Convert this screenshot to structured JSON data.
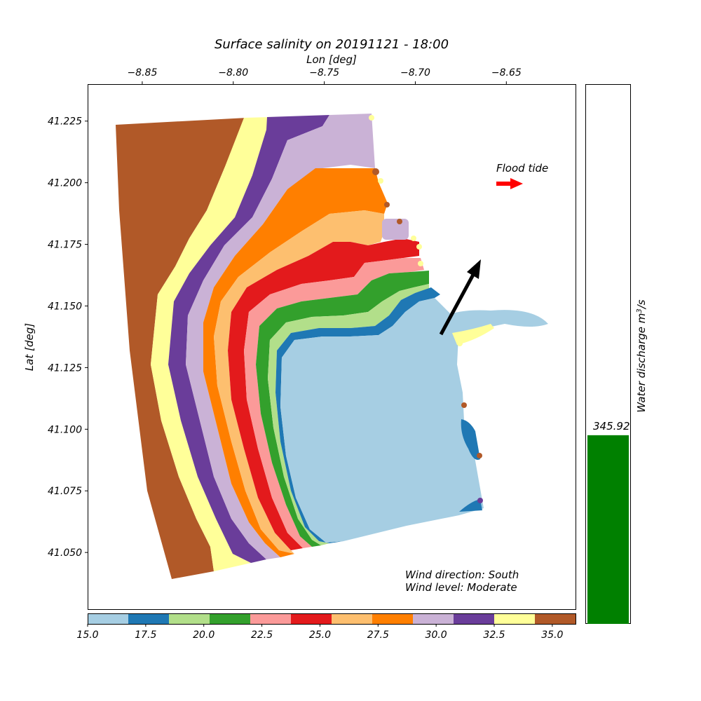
{
  "chart_data": {
    "type": "scatter",
    "title": "Surface salinity on 20191121 - 18:00",
    "xlabel": "Lon [deg]",
    "ylabel": "Lat [deg]",
    "xlim": [
      -8.88,
      -8.612
    ],
    "ylim": [
      41.027,
      41.24
    ],
    "xticks": [
      "−8.85",
      "−8.80",
      "−8.75",
      "−8.70",
      "−8.65"
    ],
    "yticks": [
      "41.050",
      "41.075",
      "41.100",
      "41.125",
      "41.150",
      "41.175",
      "41.200",
      "41.225"
    ],
    "colorbar": {
      "range": [
        15.0,
        36.0
      ],
      "ticks": [
        "15.0",
        "17.5",
        "20.0",
        "22.5",
        "25.0",
        "27.5",
        "30.0",
        "32.5",
        "35.0"
      ],
      "colors": [
        "#a6cee3",
        "#1f78b4",
        "#b2df8a",
        "#33a02c",
        "#fb9a99",
        "#e31a1c",
        "#fdbf6f",
        "#ff7f00",
        "#cab2d6",
        "#6a3d9a",
        "#ffff99",
        "#b15928"
      ]
    },
    "flood_tide": {
      "label": "Flood tide",
      "color": "#ff0000"
    },
    "wind": {
      "direction_label": "Wind direction: South",
      "level_label": "Wind level: Moderate",
      "arrow_color": "#000000"
    },
    "discharge": {
      "ylabel": "Water discharge m",
      "ylabel_sup": "3",
      "ylabel_tail": "/s",
      "value": 345.92,
      "value_label": "345.92",
      "fraction": 0.35,
      "color": "#008000"
    }
  }
}
